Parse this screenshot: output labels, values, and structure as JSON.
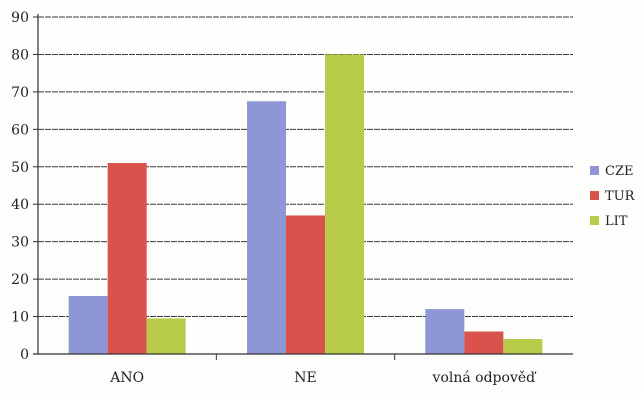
{
  "chart_data": {
    "type": "bar",
    "categories": [
      "ANO",
      "NE",
      "volná odpověď"
    ],
    "series": [
      {
        "name": "CZE",
        "values": [
          15.5,
          67.5,
          12
        ],
        "color": "#8e96d6"
      },
      {
        "name": "TUR",
        "values": [
          51,
          37,
          6
        ],
        "color": "#d9534c"
      },
      {
        "name": "LIT",
        "values": [
          9.5,
          80,
          4
        ],
        "color": "#b8cc4a"
      }
    ],
    "yticks": [
      "0",
      "10",
      "20",
      "30",
      "40",
      "50",
      "60",
      "70",
      "80",
      "90"
    ],
    "ylim": [
      0,
      90
    ],
    "grid": true,
    "legend_position": "right",
    "title": "",
    "xlabel": "",
    "ylabel": ""
  }
}
